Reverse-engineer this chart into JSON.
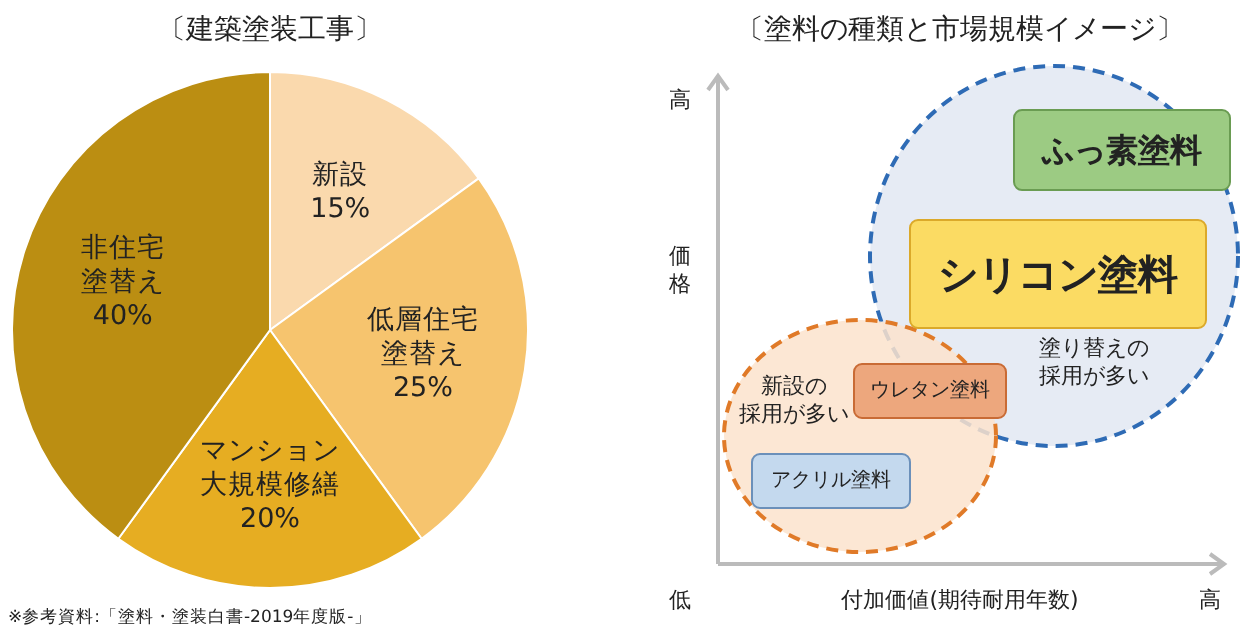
{
  "chart_data": [
    {
      "type": "pie",
      "title": "〔建築塗装工事〕",
      "categories": [
        "新設",
        "低層住宅塗替え",
        "マンション大規模修繕",
        "非住宅塗替え"
      ],
      "values": [
        15,
        25,
        20,
        40
      ],
      "value_labels": [
        "15%",
        "25%",
        "20%",
        "40%"
      ],
      "colors": [
        "#fad9ad",
        "#f6c46e",
        "#e6ad22",
        "#bb8e12"
      ],
      "annotations": [
        "※参考資料:「塗料・塗装白書-2019年度版-」"
      ]
    },
    {
      "type": "other",
      "title": "〔塗料の種類と市場規模イメージ〕",
      "xlabel": "付加価値(期待耐用年数)",
      "ylabel": "価格",
      "annotations": [
        "高",
        "低",
        "高",
        "ふっ素塗料",
        "シリコン塗料",
        "ウレタン塗料",
        "アクリル塗料",
        "塗り替えの採用が多い",
        "新設の採用が多い"
      ]
    }
  ]
}
